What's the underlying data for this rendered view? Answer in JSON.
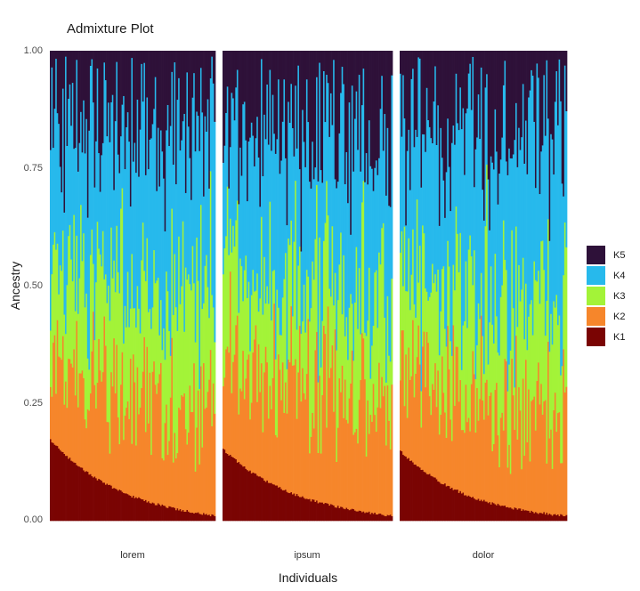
{
  "chart_data": {
    "type": "bar",
    "stacked": true,
    "title": "Admixture Plot",
    "xlabel": "Individuals",
    "ylabel": "Ancestry",
    "ylim": [
      0,
      1
    ],
    "yticks": [
      "0.00",
      "0.25",
      "0.50",
      "0.75",
      "1.00"
    ],
    "yticks_values": [
      0,
      0.25,
      0.5,
      0.75,
      1
    ],
    "grid": false,
    "legend_position": "right",
    "components": [
      {
        "name": "K5",
        "color": "#2e1139"
      },
      {
        "name": "K4",
        "color": "#27b9ec"
      },
      {
        "name": "K3",
        "color": "#a3f338"
      },
      {
        "name": "K2",
        "color": "#f6862b"
      },
      {
        "name": "K1",
        "color": "#7a0403"
      }
    ],
    "panels": [
      {
        "label": "lorem",
        "individuals": 120,
        "K1_sorted_descending": {
          "max": 0.19,
          "median": 0.08,
          "min": 0.01
        },
        "typical_mean_proportions": {
          "K1": 0.08,
          "K2": 0.2,
          "K3": 0.22,
          "K4": 0.32,
          "K5": 0.18
        }
      },
      {
        "label": "ipsum",
        "individuals": 120,
        "K1_sorted_descending": {
          "max": 0.17,
          "median": 0.07,
          "min": 0.01
        },
        "typical_mean_proportions": {
          "K1": 0.07,
          "K2": 0.22,
          "K3": 0.2,
          "K4": 0.31,
          "K5": 0.2
        }
      },
      {
        "label": "dolor",
        "individuals": 120,
        "K1_sorted_descending": {
          "max": 0.18,
          "median": 0.06,
          "min": 0.01
        },
        "typical_mean_proportions": {
          "K1": 0.07,
          "K2": 0.2,
          "K3": 0.21,
          "K4": 0.33,
          "K5": 0.19
        }
      }
    ]
  }
}
